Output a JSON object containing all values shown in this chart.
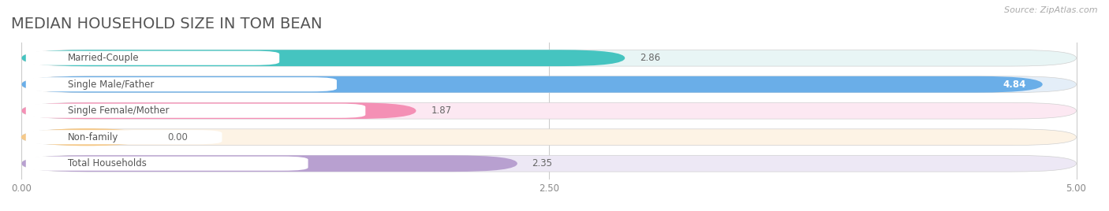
{
  "title": "MEDIAN HOUSEHOLD SIZE IN TOM BEAN",
  "source": "Source: ZipAtlas.com",
  "categories": [
    "Married-Couple",
    "Single Male/Father",
    "Single Female/Mother",
    "Non-family",
    "Total Households"
  ],
  "values": [
    2.86,
    4.84,
    1.87,
    0.0,
    2.35
  ],
  "bar_colors": [
    "#45c4c0",
    "#6aaee8",
    "#f490b5",
    "#f5c98a",
    "#b8a0d0"
  ],
  "bar_bg_colors": [
    "#e8f5f5",
    "#e4eef8",
    "#fce8f2",
    "#fdf3e5",
    "#ede8f5"
  ],
  "xlim": [
    0,
    5.0
  ],
  "xticks": [
    0.0,
    2.5,
    5.0
  ],
  "xtick_labels": [
    "0.00",
    "2.50",
    "5.00"
  ],
  "title_fontsize": 14,
  "label_fontsize": 8.5,
  "value_fontsize": 8.5,
  "background_color": "#ffffff"
}
